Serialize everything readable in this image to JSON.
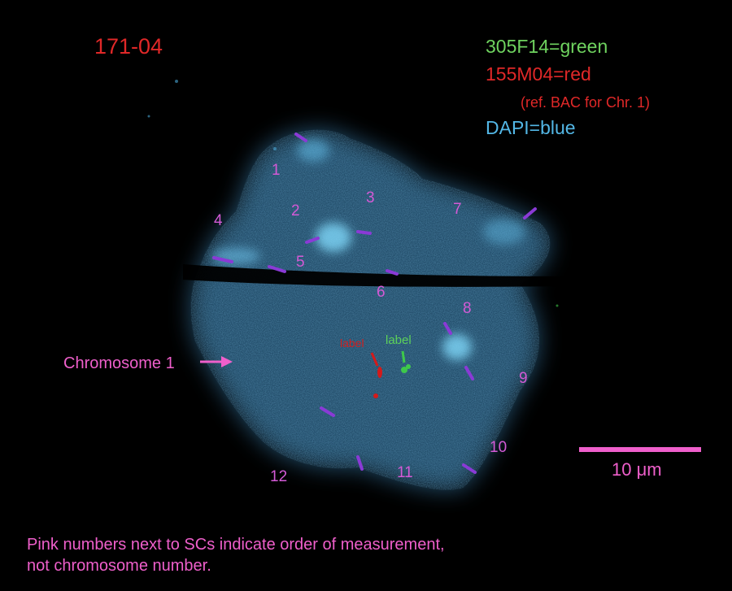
{
  "image": {
    "title": "171-04",
    "legend": {
      "green": "305F14=green",
      "red": "155M04=red",
      "red_note": "(ref. BAC for Chr. 1)",
      "blue": "DAPI=blue"
    },
    "sc_numbers": [
      "1",
      "2",
      "3",
      "4",
      "5",
      "6",
      "7",
      "8",
      "9",
      "10",
      "11",
      "12"
    ],
    "labels": {
      "green": "label",
      "red": "label"
    },
    "chromosome_label": "Chromosome 1",
    "scale_bar": "10 μm",
    "note_line1": "Pink numbers next to SCs indicate order of measurement,",
    "note_line2": "not chromosome number.",
    "colors": {
      "title": "#e02828",
      "green_signal": "#3ec84a",
      "red_signal": "#d41a1a",
      "dapi": "#4fa8d8",
      "pink_text": "#ef5fcb",
      "sc_marker": "#8a3ad6"
    }
  }
}
